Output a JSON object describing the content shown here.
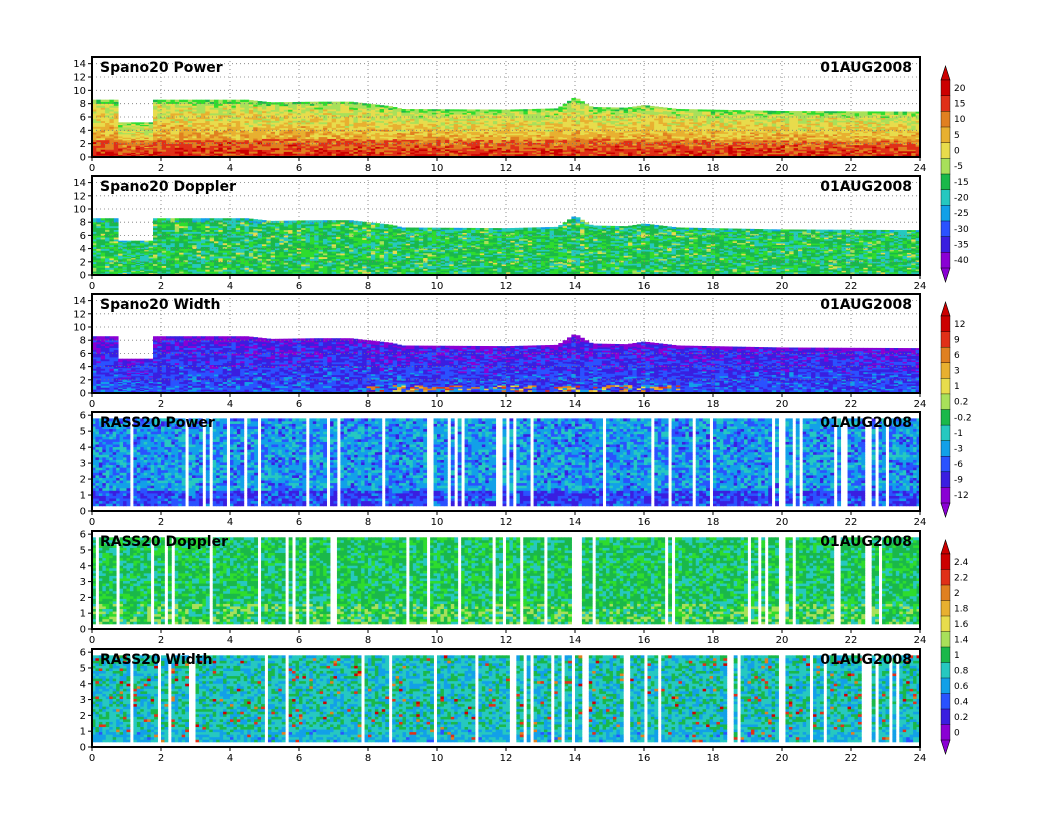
{
  "chart_data": [
    {
      "type": "heatmap",
      "title": "Spano20  Power",
      "date": "01AUG2008",
      "x_ticks": [
        "0",
        "2",
        "4",
        "6",
        "8",
        "10",
        "12",
        "14",
        "16",
        "18",
        "20",
        "22",
        "24"
      ],
      "xlim": [
        0,
        24
      ],
      "y_ticks": [
        "0",
        "2",
        "4",
        "6",
        "8",
        "10",
        "12",
        "14"
      ],
      "ylim": [
        0,
        15
      ],
      "grid": true,
      "colorbar": {
        "ticks": [
          "20",
          "15",
          "10",
          "5",
          "0",
          "-5",
          "-15",
          "-20",
          "-25",
          "-30",
          "-35",
          "-40"
        ]
      },
      "top_profile": [
        [
          0,
          8.6
        ],
        [
          0.8,
          8.6
        ],
        [
          0.8,
          5.2
        ],
        [
          1.8,
          5.2
        ],
        [
          1.8,
          8.6
        ],
        [
          3.2,
          8.6
        ],
        [
          3.4,
          8.6
        ],
        [
          4.5,
          8.6
        ],
        [
          5.2,
          8.2
        ],
        [
          6.5,
          8.3
        ],
        [
          7.5,
          8.3
        ],
        [
          8.7,
          7.6
        ],
        [
          9,
          7.2
        ],
        [
          12,
          7.1
        ],
        [
          13.5,
          7.3
        ],
        [
          14,
          9.0
        ],
        [
          14.5,
          7.5
        ],
        [
          15.5,
          7.4
        ],
        [
          16,
          7.8
        ],
        [
          17,
          7.2
        ],
        [
          18,
          7.1
        ],
        [
          20,
          6.9
        ],
        [
          24,
          6.8
        ]
      ],
      "base_level": 7
    },
    {
      "type": "heatmap",
      "title": "Spano20  Doppler",
      "date": "01AUG2008",
      "x_ticks": [
        "0",
        "2",
        "4",
        "6",
        "8",
        "10",
        "12",
        "14",
        "16",
        "18",
        "20",
        "22",
        "24"
      ],
      "xlim": [
        0,
        24
      ],
      "y_ticks": [
        "0",
        "2",
        "4",
        "6",
        "8",
        "10",
        "12",
        "14"
      ],
      "ylim": [
        0,
        15
      ],
      "grid": true,
      "top_profile": [
        [
          0,
          8.6
        ],
        [
          0.8,
          8.6
        ],
        [
          0.8,
          5.2
        ],
        [
          1.8,
          5.2
        ],
        [
          1.8,
          8.6
        ],
        [
          3.2,
          8.6
        ],
        [
          3.4,
          8.6
        ],
        [
          4.5,
          8.6
        ],
        [
          5.2,
          8.2
        ],
        [
          6.5,
          8.3
        ],
        [
          7.5,
          8.3
        ],
        [
          8.7,
          7.6
        ],
        [
          9,
          7.2
        ],
        [
          12,
          7.1
        ],
        [
          13.5,
          7.3
        ],
        [
          14,
          9.0
        ],
        [
          14.5,
          7.5
        ],
        [
          15.5,
          7.4
        ],
        [
          16,
          7.8
        ],
        [
          17,
          7.2
        ],
        [
          18,
          7.1
        ],
        [
          20,
          6.9
        ],
        [
          24,
          6.8
        ]
      ],
      "base_level": 5
    },
    {
      "type": "heatmap",
      "title": "Spano20  Width",
      "date": "01AUG2008",
      "x_ticks": [
        "0",
        "2",
        "4",
        "6",
        "8",
        "10",
        "12",
        "14",
        "16",
        "18",
        "20",
        "22",
        "24"
      ],
      "xlim": [
        0,
        24
      ],
      "y_ticks": [
        "0",
        "2",
        "4",
        "6",
        "8",
        "10",
        "12",
        "14"
      ],
      "ylim": [
        0,
        15
      ],
      "grid": true,
      "colorbar": {
        "ticks": [
          "12",
          "9",
          "6",
          "3",
          "1",
          "0.2",
          "-0.2",
          "-1",
          "-3",
          "-6",
          "-9",
          "-12"
        ]
      },
      "top_profile": [
        [
          0,
          8.6
        ],
        [
          0.8,
          8.6
        ],
        [
          0.8,
          5.2
        ],
        [
          1.8,
          5.2
        ],
        [
          1.8,
          8.6
        ],
        [
          3.2,
          8.6
        ],
        [
          3.4,
          8.6
        ],
        [
          4.5,
          8.6
        ],
        [
          5.2,
          8.2
        ],
        [
          6.5,
          8.3
        ],
        [
          7.5,
          8.3
        ],
        [
          8.7,
          7.6
        ],
        [
          9,
          7.2
        ],
        [
          12,
          7.1
        ],
        [
          13.5,
          7.3
        ],
        [
          14,
          9.0
        ],
        [
          14.5,
          7.5
        ],
        [
          15.5,
          7.4
        ],
        [
          16,
          7.8
        ],
        [
          17,
          7.2
        ],
        [
          18,
          7.1
        ],
        [
          20,
          6.9
        ],
        [
          24,
          6.8
        ]
      ],
      "base_level": 2
    },
    {
      "type": "heatmap",
      "title": "RASS20  Power",
      "date": "01AUG2008",
      "x_ticks": [
        "0",
        "2",
        "4",
        "6",
        "8",
        "10",
        "12",
        "14",
        "16",
        "18",
        "20",
        "22",
        "24"
      ],
      "xlim": [
        0,
        24
      ],
      "y_ticks": [
        "0",
        "1",
        "2",
        "3",
        "4",
        "5",
        "6"
      ],
      "ylim": [
        0,
        6.2
      ],
      "grid": false,
      "base_level": 3
    },
    {
      "type": "heatmap",
      "title": "RASS20  Doppler",
      "date": "01AUG2008",
      "x_ticks": [
        "0",
        "2",
        "4",
        "6",
        "8",
        "10",
        "12",
        "14",
        "16",
        "18",
        "20",
        "22",
        "24"
      ],
      "xlim": [
        0,
        24
      ],
      "y_ticks": [
        "0",
        "1",
        "2",
        "3",
        "4",
        "5",
        "6"
      ],
      "ylim": [
        0,
        6.2
      ],
      "grid": false,
      "colorbar": {
        "ticks": [
          "2.4",
          "2.2",
          "2",
          "1.8",
          "1.6",
          "1.4",
          "1",
          "0.8",
          "0.6",
          "0.4",
          "0.2",
          "0"
        ]
      },
      "base_level": 5
    },
    {
      "type": "heatmap",
      "title": "RASS20  Width",
      "date": "01AUG2008",
      "x_ticks": [
        "0",
        "2",
        "4",
        "6",
        "8",
        "10",
        "12",
        "14",
        "16",
        "18",
        "20",
        "22",
        "24"
      ],
      "xlim": [
        0,
        24
      ],
      "y_ticks": [
        "0",
        "1",
        "2",
        "3",
        "4",
        "5",
        "6"
      ],
      "ylim": [
        0,
        6.2
      ],
      "grid": false,
      "base_level": 4
    }
  ],
  "colors": {
    "palette": [
      "#8a00d4",
      "#3a1ee0",
      "#2a52ff",
      "#12a0e8",
      "#26c8c0",
      "#1ab84a",
      "#2edc2e",
      "#a8e05a",
      "#e8dc4c",
      "#e8b030",
      "#e08020",
      "#e03018",
      "#cc0000"
    ]
  }
}
